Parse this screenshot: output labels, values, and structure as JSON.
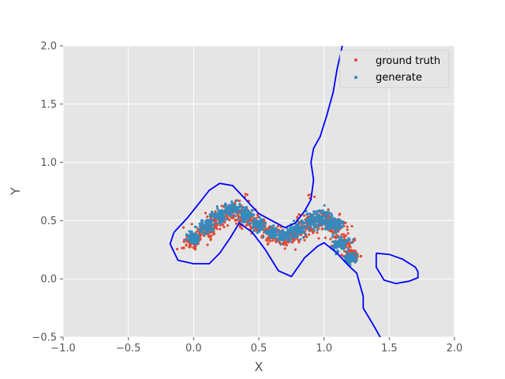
{
  "chart_data": {
    "type": "scatter",
    "xlabel": "X",
    "ylabel": "Y",
    "xlim": [
      -1.0,
      2.0
    ],
    "ylim": [
      -0.5,
      2.0
    ],
    "xticks": [
      -1.0,
      -0.5,
      0.0,
      0.5,
      1.0,
      1.5,
      2.0
    ],
    "yticks": [
      -0.5,
      0.0,
      0.5,
      1.0,
      1.5,
      2.0
    ],
    "xtick_labels": [
      "−1.0",
      "−0.5",
      "0.0",
      "0.5",
      "1.0",
      "1.5",
      "2.0"
    ],
    "ytick_labels": [
      "−0.5",
      "0.0",
      "0.5",
      "1.0",
      "1.5",
      "2.0"
    ],
    "grid": true,
    "legend_position": "top-right",
    "colors": {
      "background": "#e5e5e5",
      "grid": "#ffffff",
      "ground_truth": "#e24a33",
      "generate": "#348abd",
      "contour": "#0000ff"
    },
    "series": [
      {
        "name": "ground truth",
        "kind": "points",
        "cloud": [
          [
            0.0,
            0.32,
            0.07
          ],
          [
            0.1,
            0.42,
            0.08
          ],
          [
            0.2,
            0.52,
            0.08
          ],
          [
            0.3,
            0.58,
            0.07
          ],
          [
            0.4,
            0.52,
            0.07
          ],
          [
            0.5,
            0.45,
            0.06
          ],
          [
            0.6,
            0.38,
            0.06
          ],
          [
            0.7,
            0.35,
            0.06
          ],
          [
            0.8,
            0.4,
            0.07
          ],
          [
            0.9,
            0.48,
            0.08
          ],
          [
            1.0,
            0.5,
            0.08
          ],
          [
            1.08,
            0.45,
            0.08
          ],
          [
            1.15,
            0.32,
            0.07
          ],
          [
            1.22,
            0.2,
            0.05
          ],
          [
            -0.08,
            0.26,
            0.03
          ],
          [
            0.4,
            0.7,
            0.03
          ],
          [
            0.92,
            0.7,
            0.03
          ]
        ]
      },
      {
        "name": "generate",
        "kind": "points",
        "cloud": [
          [
            0.0,
            0.35,
            0.05
          ],
          [
            0.1,
            0.45,
            0.06
          ],
          [
            0.2,
            0.55,
            0.06
          ],
          [
            0.3,
            0.6,
            0.05
          ],
          [
            0.4,
            0.55,
            0.05
          ],
          [
            0.5,
            0.46,
            0.05
          ],
          [
            0.6,
            0.4,
            0.04
          ],
          [
            0.7,
            0.37,
            0.05
          ],
          [
            0.8,
            0.42,
            0.06
          ],
          [
            0.9,
            0.5,
            0.06
          ],
          [
            1.0,
            0.52,
            0.07
          ],
          [
            1.08,
            0.46,
            0.07
          ],
          [
            1.13,
            0.3,
            0.06
          ],
          [
            1.2,
            0.18,
            0.04
          ]
        ]
      }
    ],
    "contours": [
      [
        [
          -0.15,
          0.4
        ],
        [
          -0.05,
          0.52
        ],
        [
          0.05,
          0.66
        ],
        [
          0.12,
          0.76
        ],
        [
          0.2,
          0.82
        ],
        [
          0.3,
          0.8
        ],
        [
          0.4,
          0.68
        ],
        [
          0.5,
          0.56
        ],
        [
          0.6,
          0.5
        ],
        [
          0.7,
          0.44
        ],
        [
          0.78,
          0.48
        ],
        [
          0.85,
          0.58
        ],
        [
          0.9,
          0.68
        ],
        [
          0.92,
          0.85
        ],
        [
          0.9,
          1.0
        ],
        [
          0.92,
          1.12
        ],
        [
          0.97,
          1.22
        ],
        [
          1.02,
          1.4
        ],
        [
          1.07,
          1.6
        ],
        [
          1.1,
          1.8
        ],
        [
          1.14,
          2.0
        ]
      ],
      [
        [
          -0.15,
          0.4
        ],
        [
          -0.18,
          0.3
        ],
        [
          -0.12,
          0.16
        ],
        [
          0.0,
          0.13
        ],
        [
          0.12,
          0.13
        ],
        [
          0.2,
          0.22
        ],
        [
          0.28,
          0.35
        ],
        [
          0.35,
          0.48
        ],
        [
          0.45,
          0.4
        ],
        [
          0.55,
          0.25
        ],
        [
          0.65,
          0.07
        ],
        [
          0.75,
          0.02
        ],
        [
          0.85,
          0.18
        ],
        [
          0.95,
          0.28
        ],
        [
          1.0,
          0.31
        ],
        [
          1.1,
          0.22
        ],
        [
          1.2,
          0.1
        ],
        [
          1.25,
          0.05
        ],
        [
          1.3,
          -0.15
        ],
        [
          1.3,
          -0.25
        ],
        [
          1.38,
          -0.4
        ],
        [
          1.43,
          -0.5
        ]
      ],
      [
        [
          1.4,
          0.22
        ],
        [
          1.5,
          0.21
        ],
        [
          1.6,
          0.17
        ],
        [
          1.7,
          0.1
        ],
        [
          1.72,
          0.06
        ],
        [
          1.72,
          0.01
        ],
        [
          1.65,
          -0.02
        ],
        [
          1.55,
          -0.04
        ],
        [
          1.46,
          -0.01
        ],
        [
          1.4,
          0.1
        ],
        [
          1.4,
          0.22
        ]
      ]
    ]
  }
}
